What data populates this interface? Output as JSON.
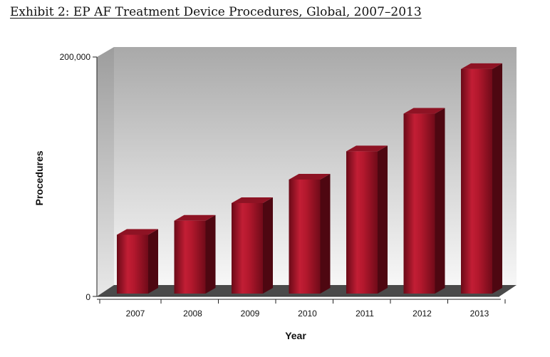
{
  "title": "Exhibit 2: EP AF Treatment Device Procedures, Global, 2007–2013",
  "chart_data": {
    "type": "bar",
    "title": "Exhibit 2: EP AF Treatment Device Procedures, Global, 2007–2013",
    "categories": [
      "2007",
      "2008",
      "2009",
      "2010",
      "2011",
      "2012",
      "2013"
    ],
    "values": [
      50000,
      62000,
      77000,
      97000,
      121000,
      153000,
      191000
    ],
    "xlabel": "Year",
    "ylabel": "Procedures",
    "ylim": [
      0,
      200000
    ],
    "yticks": [
      "0",
      "200,000"
    ],
    "grid": false,
    "bar_color": "#9b1226",
    "style": "3d"
  }
}
